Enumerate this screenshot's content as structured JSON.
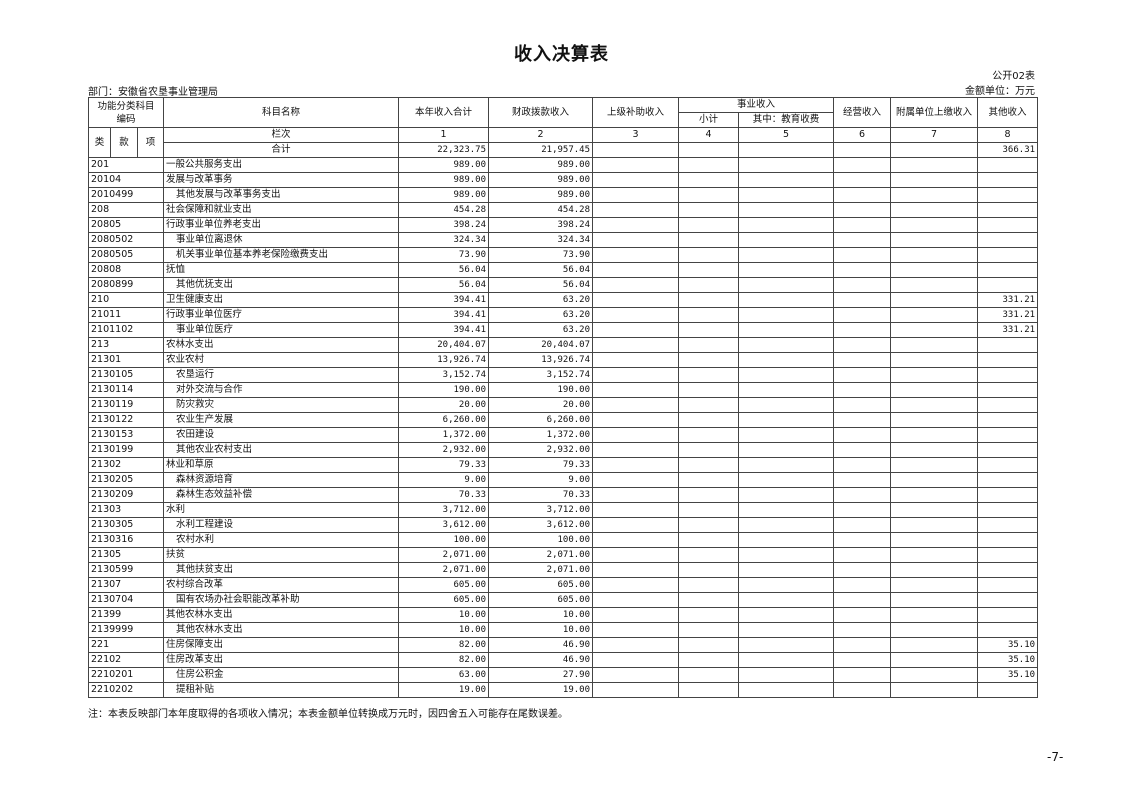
{
  "title": "收入决算表",
  "table_no": "公开02表",
  "department": "部门：安徽省农垦事业管理局",
  "unit": "金额单位：万元",
  "headers": {
    "func_code": "功能分类科目编码",
    "lei": "类",
    "kuan": "款",
    "xiang": "项",
    "name": "科目名称",
    "total": "本年收入合计",
    "fiscal": "财政拨款收入",
    "superior": "上级补助收入",
    "business": "事业收入",
    "subtotal": "小计",
    "education": "其中：教育收费",
    "operating": "经营收入",
    "affiliated": "附属单位上缴收入",
    "other": "其他收入",
    "column_no": "栏次",
    "col_numbers": [
      "1",
      "2",
      "3",
      "4",
      "5",
      "6",
      "7",
      "8"
    ],
    "sum_label": "合计"
  },
  "sum_row": {
    "total": "22,323.75",
    "fiscal": "21,957.45",
    "other": "366.31"
  },
  "rows": [
    {
      "code": "201",
      "name": "一般公共服务支出",
      "level": 1,
      "total": "989.00",
      "fiscal": "989.00",
      "other": ""
    },
    {
      "code": "20104",
      "name": "发展与改革事务",
      "level": 2,
      "total": "989.00",
      "fiscal": "989.00",
      "other": ""
    },
    {
      "code": "2010499",
      "name": "其他发展与改革事务支出",
      "level": 3,
      "total": "989.00",
      "fiscal": "989.00",
      "other": ""
    },
    {
      "code": "208",
      "name": "社会保障和就业支出",
      "level": 1,
      "total": "454.28",
      "fiscal": "454.28",
      "other": ""
    },
    {
      "code": "20805",
      "name": "行政事业单位养老支出",
      "level": 2,
      "total": "398.24",
      "fiscal": "398.24",
      "other": ""
    },
    {
      "code": "2080502",
      "name": "事业单位离退休",
      "level": 3,
      "total": "324.34",
      "fiscal": "324.34",
      "other": ""
    },
    {
      "code": "2080505",
      "name": "机关事业单位基本养老保险缴费支出",
      "level": 3,
      "total": "73.90",
      "fiscal": "73.90",
      "other": ""
    },
    {
      "code": "20808",
      "name": "抚恤",
      "level": 2,
      "total": "56.04",
      "fiscal": "56.04",
      "other": ""
    },
    {
      "code": "2080899",
      "name": "其他优抚支出",
      "level": 3,
      "total": "56.04",
      "fiscal": "56.04",
      "other": ""
    },
    {
      "code": "210",
      "name": "卫生健康支出",
      "level": 1,
      "total": "394.41",
      "fiscal": "63.20",
      "other": "331.21"
    },
    {
      "code": "21011",
      "name": "行政事业单位医疗",
      "level": 2,
      "total": "394.41",
      "fiscal": "63.20",
      "other": "331.21"
    },
    {
      "code": "2101102",
      "name": "事业单位医疗",
      "level": 3,
      "total": "394.41",
      "fiscal": "63.20",
      "other": "331.21"
    },
    {
      "code": "213",
      "name": "农林水支出",
      "level": 1,
      "total": "20,404.07",
      "fiscal": "20,404.07",
      "other": ""
    },
    {
      "code": "21301",
      "name": "农业农村",
      "level": 2,
      "total": "13,926.74",
      "fiscal": "13,926.74",
      "other": ""
    },
    {
      "code": "2130105",
      "name": "农垦运行",
      "level": 3,
      "total": "3,152.74",
      "fiscal": "3,152.74",
      "other": ""
    },
    {
      "code": "2130114",
      "name": "对外交流与合作",
      "level": 3,
      "total": "190.00",
      "fiscal": "190.00",
      "other": ""
    },
    {
      "code": "2130119",
      "name": "防灾救灾",
      "level": 3,
      "total": "20.00",
      "fiscal": "20.00",
      "other": ""
    },
    {
      "code": "2130122",
      "name": "农业生产发展",
      "level": 3,
      "total": "6,260.00",
      "fiscal": "6,260.00",
      "other": ""
    },
    {
      "code": "2130153",
      "name": "农田建设",
      "level": 3,
      "total": "1,372.00",
      "fiscal": "1,372.00",
      "other": ""
    },
    {
      "code": "2130199",
      "name": "其他农业农村支出",
      "level": 3,
      "total": "2,932.00",
      "fiscal": "2,932.00",
      "other": ""
    },
    {
      "code": "21302",
      "name": "林业和草原",
      "level": 2,
      "total": "79.33",
      "fiscal": "79.33",
      "other": ""
    },
    {
      "code": "2130205",
      "name": "森林资源培育",
      "level": 3,
      "total": "9.00",
      "fiscal": "9.00",
      "other": ""
    },
    {
      "code": "2130209",
      "name": "森林生态效益补偿",
      "level": 3,
      "total": "70.33",
      "fiscal": "70.33",
      "other": ""
    },
    {
      "code": "21303",
      "name": "水利",
      "level": 2,
      "total": "3,712.00",
      "fiscal": "3,712.00",
      "other": ""
    },
    {
      "code": "2130305",
      "name": "水利工程建设",
      "level": 3,
      "total": "3,612.00",
      "fiscal": "3,612.00",
      "other": ""
    },
    {
      "code": "2130316",
      "name": "农村水利",
      "level": 3,
      "total": "100.00",
      "fiscal": "100.00",
      "other": ""
    },
    {
      "code": "21305",
      "name": "扶贫",
      "level": 2,
      "total": "2,071.00",
      "fiscal": "2,071.00",
      "other": ""
    },
    {
      "code": "2130599",
      "name": "其他扶贫支出",
      "level": 3,
      "total": "2,071.00",
      "fiscal": "2,071.00",
      "other": ""
    },
    {
      "code": "21307",
      "name": "农村综合改革",
      "level": 2,
      "total": "605.00",
      "fiscal": "605.00",
      "other": ""
    },
    {
      "code": "2130704",
      "name": "国有农场办社会职能改革补助",
      "level": 3,
      "total": "605.00",
      "fiscal": "605.00",
      "other": ""
    },
    {
      "code": "21399",
      "name": "其他农林水支出",
      "level": 2,
      "total": "10.00",
      "fiscal": "10.00",
      "other": ""
    },
    {
      "code": "2139999",
      "name": "其他农林水支出",
      "level": 3,
      "total": "10.00",
      "fiscal": "10.00",
      "other": ""
    },
    {
      "code": "221",
      "name": "住房保障支出",
      "level": 1,
      "total": "82.00",
      "fiscal": "46.90",
      "other": "35.10"
    },
    {
      "code": "22102",
      "name": "住房改革支出",
      "level": 2,
      "total": "82.00",
      "fiscal": "46.90",
      "other": "35.10"
    },
    {
      "code": "2210201",
      "name": "住房公积金",
      "level": 3,
      "total": "63.00",
      "fiscal": "27.90",
      "other": "35.10"
    },
    {
      "code": "2210202",
      "name": "提租补贴",
      "level": 3,
      "total": "19.00",
      "fiscal": "19.00",
      "other": ""
    }
  ],
  "note": "注：本表反映部门本年度取得的各项收入情况；本表金额单位转换成万元时，因四舍五入可能存在尾数误差。",
  "page_number": "-7-"
}
